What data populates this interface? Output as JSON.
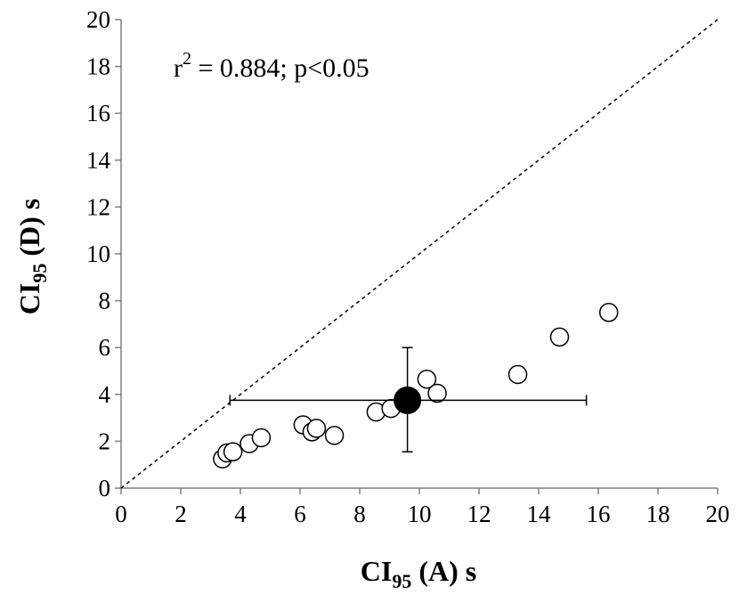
{
  "chart_data": {
    "type": "scatter",
    "xlabel": {
      "main": "CI",
      "sub": "95",
      "rest": " (A) s"
    },
    "ylabel": {
      "main": "CI",
      "sub": "95",
      "rest": " (D) s"
    },
    "xlim": [
      0,
      20
    ],
    "ylim": [
      0,
      20
    ],
    "xticks": [
      0,
      2,
      4,
      6,
      8,
      10,
      12,
      14,
      16,
      18,
      20
    ],
    "yticks": [
      0,
      2,
      4,
      6,
      8,
      10,
      12,
      14,
      16,
      18,
      20
    ],
    "grid": false,
    "annotation": {
      "prefix": "r",
      "sup": "2",
      "rest": " = 0.884; p<0.05"
    },
    "identity_line": {
      "x": [
        0,
        20
      ],
      "y": [
        0,
        20
      ],
      "style": "dashed"
    },
    "points": [
      {
        "x": 3.4,
        "y": 1.25
      },
      {
        "x": 3.55,
        "y": 1.5
      },
      {
        "x": 3.75,
        "y": 1.55
      },
      {
        "x": 4.3,
        "y": 1.9
      },
      {
        "x": 4.7,
        "y": 2.15
      },
      {
        "x": 6.1,
        "y": 2.7
      },
      {
        "x": 6.4,
        "y": 2.4
      },
      {
        "x": 6.55,
        "y": 2.55
      },
      {
        "x": 7.15,
        "y": 2.25
      },
      {
        "x": 8.55,
        "y": 3.25
      },
      {
        "x": 9.05,
        "y": 3.4
      },
      {
        "x": 10.25,
        "y": 4.65
      },
      {
        "x": 10.6,
        "y": 4.05
      },
      {
        "x": 13.3,
        "y": 4.85
      },
      {
        "x": 14.7,
        "y": 6.45
      },
      {
        "x": 16.35,
        "y": 7.5
      }
    ],
    "mean": {
      "x": 9.6,
      "y": 3.75,
      "x_err": [
        3.65,
        15.6
      ],
      "y_err": [
        1.55,
        6.0
      ]
    }
  }
}
